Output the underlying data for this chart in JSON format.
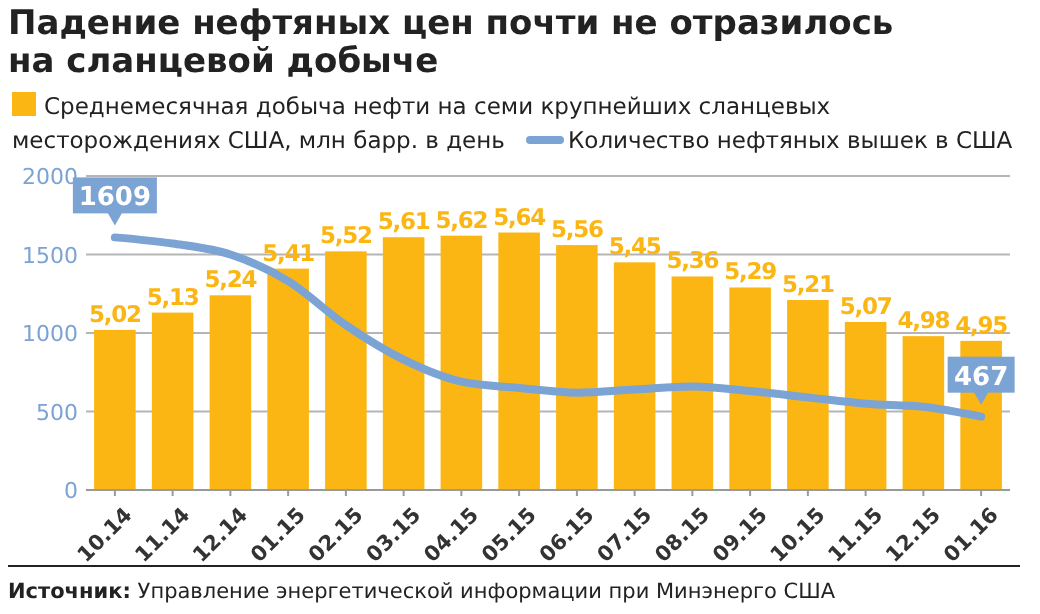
{
  "chart_data": {
    "type": "bar",
    "title": "Падение нефтяных цен почти не отразилось на сланцевой добыче",
    "categories": [
      "10.14",
      "11.14",
      "12.14",
      "01.15",
      "02.15",
      "03.15",
      "04.15",
      "05.15",
      "06.15",
      "07.15",
      "08.15",
      "09.15",
      "10.15",
      "11.15",
      "12.15",
      "01.16"
    ],
    "series": [
      {
        "name": "Среднемесячная добыча нефти на семи крупнейших сланцевых месторождениях США, млн барр. в день",
        "color": "#fbb614",
        "axis": "y2",
        "values": [
          5.02,
          5.13,
          5.24,
          5.41,
          5.52,
          5.61,
          5.62,
          5.64,
          5.56,
          5.45,
          5.36,
          5.29,
          5.21,
          5.07,
          4.98,
          4.95
        ],
        "value_labels": [
          "5,02",
          "5,13",
          "5,24",
          "5,41",
          "5,52",
          "5,61",
          "5,62",
          "5,64",
          "5,56",
          "5,45",
          "5,36",
          "5,29",
          "5,21",
          "5,07",
          "4,98",
          "4,95"
        ]
      },
      {
        "name": "Количество нефтяных вышек в США",
        "type": "line",
        "color": "#7ba3d4",
        "values": [
          1609,
          1570,
          1500,
          1330,
          1050,
          830,
          690,
          650,
          620,
          640,
          660,
          630,
          590,
          550,
          530,
          467
        ],
        "value_labels": [
          "1609",
          null,
          null,
          null,
          null,
          null,
          null,
          null,
          null,
          null,
          null,
          null,
          null,
          null,
          null,
          "467"
        ]
      }
    ],
    "ylim": [
      0,
      2000
    ],
    "yticks": [
      0,
      500,
      1000,
      1500,
      2000
    ],
    "y2lim": [
      4,
      6
    ],
    "grid": "y",
    "legend": "top",
    "marker": "none",
    "line_style": "solid",
    "annotations": [
      "Источник: Управление энергетической информации при Минэнерго США"
    ]
  }
}
